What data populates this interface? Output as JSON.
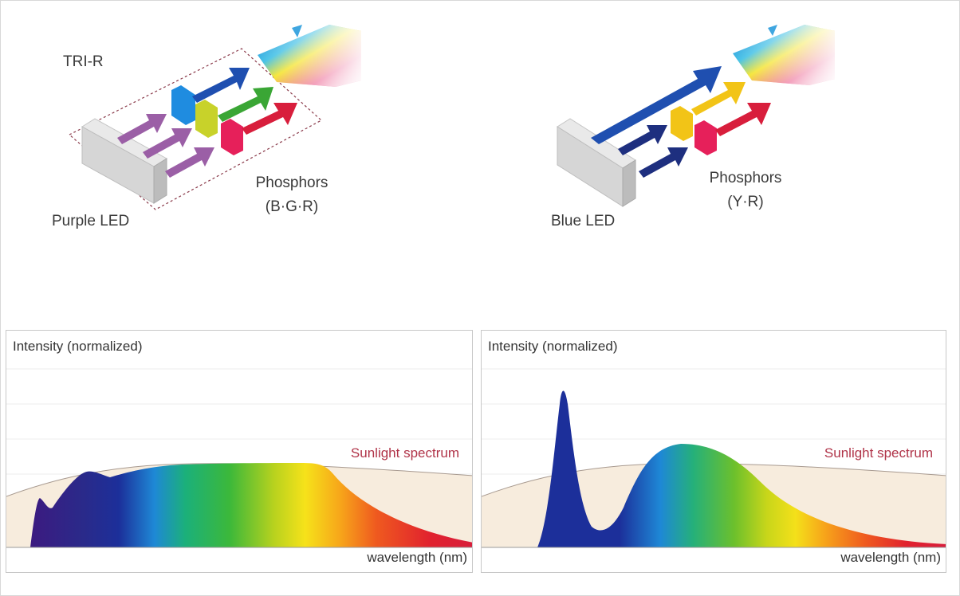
{
  "left_diagram": {
    "title": "TRI-R",
    "led_label": "Purple LED",
    "phosphor_title": "Phosphors",
    "phosphor_colors": "(B·G·R)"
  },
  "right_diagram": {
    "led_label": "Blue LED",
    "phosphor_title": "Phosphors",
    "phosphor_colors": "(Y·R)"
  },
  "left_chart": {
    "ylabel": "Intensity (normalized)",
    "xlabel": "wavelength (nm)",
    "sunlight_label": "Sunlight spectrum"
  },
  "right_chart": {
    "ylabel": "Intensity (normalized)",
    "xlabel": "wavelength (nm)",
    "sunlight_label": "Sunlight spectrum"
  },
  "colors": {
    "purple_arrow": "#9b5fa6",
    "blue": "#1f4fb0",
    "navy": "#1e2f7f",
    "green": "#3aa635",
    "red": "#d81e3c",
    "yellow": "#f2c417",
    "sun_fill": "#f7ecdd",
    "sun_label": "#b03348"
  }
}
